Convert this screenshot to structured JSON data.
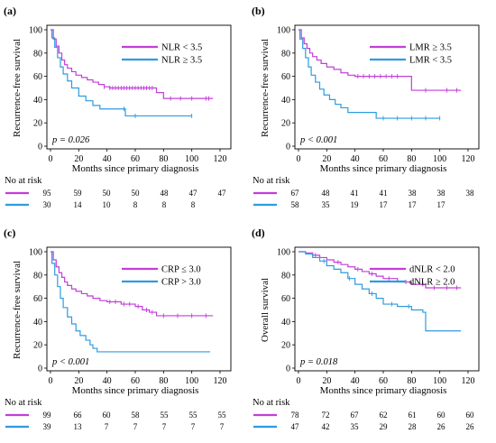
{
  "colors": {
    "magenta": "#c23fd8",
    "blue": "#2e9be0"
  },
  "chart_data": [
    {
      "type": "line",
      "label": "(a)",
      "ylabel": "Recurrence-free survival",
      "xlabel": "Months since primary diagnosis",
      "xticks": [
        0,
        20,
        40,
        60,
        80,
        100,
        120
      ],
      "yticks": [
        0,
        20,
        40,
        60,
        80,
        100
      ],
      "xlim": [
        0,
        120
      ],
      "ylim": [
        0,
        100
      ],
      "pvalue": "p = 0.026",
      "series": [
        {
          "name": "NLR < 3.5",
          "color": "magenta",
          "x": [
            0,
            2,
            4,
            6,
            8,
            10,
            12,
            15,
            18,
            22,
            26,
            30,
            34,
            38,
            42,
            60,
            75,
            80,
            115
          ],
          "y": [
            100,
            92,
            86,
            80,
            74,
            70,
            67,
            64,
            61,
            59,
            57,
            55,
            53,
            51,
            50,
            50,
            46,
            41,
            41
          ],
          "censor_x": [
            38,
            42,
            44,
            46,
            48,
            50,
            52,
            54,
            56,
            58,
            60,
            62,
            64,
            66,
            68,
            70,
            72,
            85,
            92,
            100,
            110,
            112
          ]
        },
        {
          "name": "NLR ≥ 3.5",
          "color": "blue",
          "x": [
            0,
            1,
            3,
            5,
            7,
            9,
            12,
            15,
            20,
            25,
            30,
            35,
            45,
            53,
            100
          ],
          "y": [
            100,
            93,
            85,
            76,
            68,
            62,
            56,
            50,
            43,
            39,
            35,
            32,
            32,
            26,
            26
          ],
          "censor_x": [
            52,
            60,
            100
          ]
        }
      ],
      "risk_table": {
        "title": "No at risk",
        "rows": [
          {
            "color": "magenta",
            "values": [
              "95",
              "59",
              "50",
              "50",
              "48",
              "47",
              "47"
            ]
          },
          {
            "color": "blue",
            "values": [
              "30",
              "14",
              "10",
              "8",
              "8",
              "8"
            ]
          }
        ]
      }
    },
    {
      "type": "line",
      "label": "(b)",
      "ylabel": "Recurrence-free survival",
      "xlabel": "Months since primary diagnosis",
      "xticks": [
        0,
        20,
        40,
        60,
        80,
        100,
        120
      ],
      "yticks": [
        0,
        20,
        40,
        60,
        80,
        100
      ],
      "xlim": [
        0,
        120
      ],
      "ylim": [
        0,
        100
      ],
      "pvalue": "p < 0.001",
      "series": [
        {
          "name": "LMR ≥ 3.5",
          "color": "magenta",
          "x": [
            0,
            2,
            4,
            6,
            8,
            10,
            13,
            16,
            20,
            25,
            30,
            35,
            40,
            75,
            80,
            115
          ],
          "y": [
            100,
            93,
            88,
            84,
            80,
            77,
            74,
            71,
            68,
            66,
            63,
            61,
            60,
            60,
            48,
            48
          ],
          "censor_x": [
            42,
            46,
            50,
            54,
            58,
            62,
            66,
            70,
            90,
            105,
            112
          ]
        },
        {
          "name": "LMR < 3.5",
          "color": "blue",
          "x": [
            0,
            1,
            3,
            5,
            7,
            9,
            12,
            15,
            18,
            22,
            26,
            30,
            35,
            50,
            55,
            100
          ],
          "y": [
            100,
            92,
            84,
            76,
            68,
            61,
            55,
            49,
            44,
            40,
            36,
            33,
            29,
            29,
            24,
            24
          ],
          "censor_x": [
            60,
            70,
            80,
            90,
            100
          ]
        }
      ],
      "risk_table": {
        "title": "No at risk",
        "rows": [
          {
            "color": "magenta",
            "values": [
              "67",
              "48",
              "41",
              "41",
              "38",
              "38",
              "38"
            ]
          },
          {
            "color": "blue",
            "values": [
              "58",
              "35",
              "19",
              "17",
              "17",
              "17"
            ]
          }
        ]
      }
    },
    {
      "type": "line",
      "label": "(c)",
      "ylabel": "Recurrence-free survival",
      "xlabel": "Months since primary diagnosis",
      "xticks": [
        0,
        20,
        40,
        60,
        80,
        100,
        120
      ],
      "yticks": [
        0,
        20,
        40,
        60,
        80,
        100
      ],
      "xlim": [
        0,
        120
      ],
      "ylim": [
        0,
        100
      ],
      "pvalue": "p < 0.001",
      "series": [
        {
          "name": "CRP ≤ 3.0",
          "color": "magenta",
          "x": [
            0,
            2,
            4,
            6,
            8,
            10,
            12,
            15,
            18,
            22,
            26,
            30,
            35,
            40,
            50,
            60,
            65,
            70,
            75,
            115
          ],
          "y": [
            100,
            93,
            87,
            82,
            78,
            74,
            71,
            68,
            66,
            64,
            62,
            60,
            58,
            57,
            55,
            53,
            50,
            48,
            45,
            45
          ],
          "censor_x": [
            42,
            46,
            52,
            56,
            62,
            68,
            72,
            80,
            90,
            100,
            110
          ]
        },
        {
          "name": "CRP > 3.0",
          "color": "blue",
          "x": [
            0,
            1,
            3,
            5,
            7,
            9,
            12,
            15,
            18,
            21,
            25,
            28,
            30,
            33,
            113
          ],
          "y": [
            100,
            90,
            80,
            70,
            60,
            52,
            44,
            38,
            32,
            28,
            24,
            20,
            17,
            14,
            14
          ],
          "censor_x": []
        }
      ],
      "risk_table": {
        "title": "No at risk",
        "rows": [
          {
            "color": "magenta",
            "values": [
              "99",
              "66",
              "60",
              "58",
              "55",
              "55",
              "55"
            ]
          },
          {
            "color": "blue",
            "values": [
              "39",
              "13",
              "7",
              "7",
              "7",
              "7",
              "7"
            ]
          }
        ]
      }
    },
    {
      "type": "line",
      "label": "(d)",
      "ylabel": "Overall survival",
      "xlabel": "Months since primary diagnosis",
      "xticks": [
        0,
        20,
        40,
        60,
        80,
        100,
        120
      ],
      "yticks": [
        0,
        20,
        40,
        60,
        80,
        100
      ],
      "xlim": [
        0,
        120
      ],
      "ylim": [
        0,
        100
      ],
      "pvalue": "p = 0.018",
      "series": [
        {
          "name": "dNLR < 2.0",
          "color": "magenta",
          "x": [
            0,
            5,
            10,
            15,
            20,
            25,
            30,
            35,
            40,
            45,
            50,
            55,
            60,
            70,
            80,
            90,
            115
          ],
          "y": [
            100,
            99,
            97,
            95,
            93,
            91,
            89,
            87,
            85,
            83,
            81,
            79,
            77,
            74,
            72,
            69,
            69
          ],
          "censor_x": [
            12,
            28,
            42,
            52,
            64,
            76,
            88,
            96,
            105,
            112
          ]
        },
        {
          "name": "dNLR ≥ 2.0",
          "color": "blue",
          "x": [
            0,
            5,
            10,
            15,
            20,
            25,
            30,
            35,
            40,
            45,
            50,
            55,
            60,
            70,
            80,
            88,
            90,
            115
          ],
          "y": [
            100,
            98,
            95,
            92,
            88,
            85,
            82,
            77,
            72,
            68,
            64,
            60,
            55,
            53,
            50,
            48,
            32,
            32
          ],
          "censor_x": [
            18,
            36,
            52,
            66,
            78
          ]
        }
      ],
      "risk_table": {
        "title": "No at risk",
        "rows": [
          {
            "color": "magenta",
            "values": [
              "78",
              "72",
              "67",
              "62",
              "61",
              "60",
              "60"
            ]
          },
          {
            "color": "blue",
            "values": [
              "47",
              "42",
              "35",
              "29",
              "28",
              "26",
              "26"
            ]
          }
        ]
      }
    }
  ]
}
